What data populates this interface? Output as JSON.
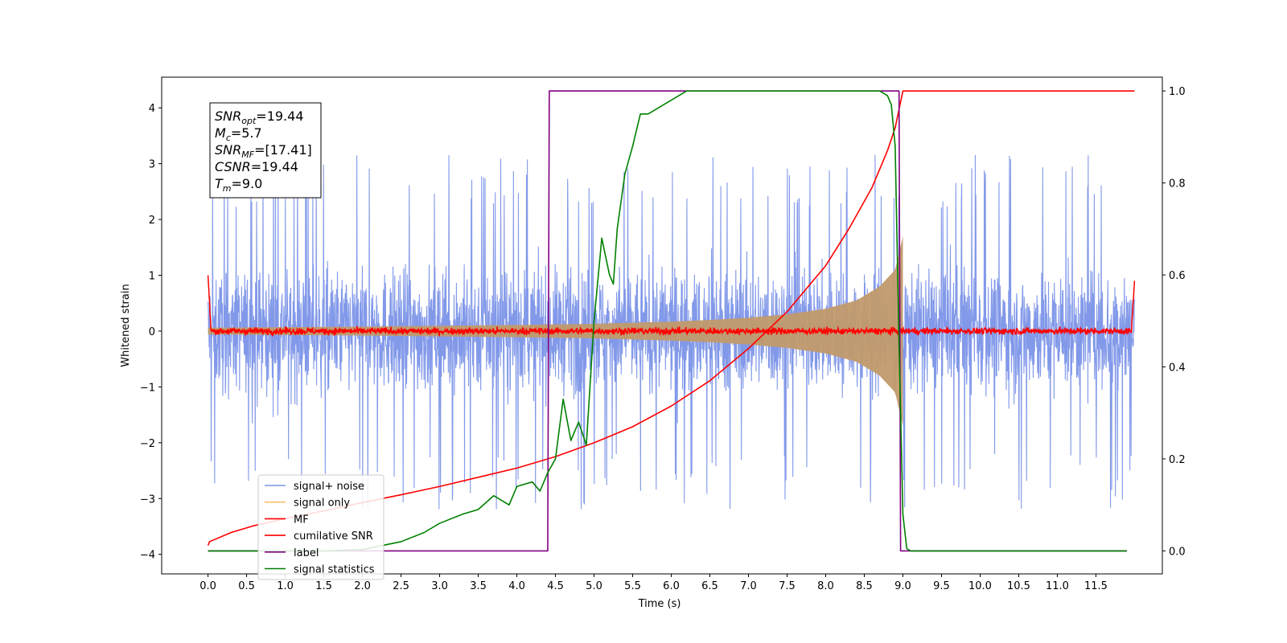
{
  "chart_data": {
    "type": "line",
    "title": "",
    "xlabel": "Time (s)",
    "ylabel": "Whitened strain",
    "y2label": "",
    "xlim": [
      -0.6,
      12.36
    ],
    "ylim": [
      -4.35,
      4.55
    ],
    "y2lim": [
      -0.05,
      1.03
    ],
    "x_ticks": [
      0.0,
      0.5,
      1.0,
      1.5,
      2.0,
      2.5,
      3.0,
      3.5,
      4.0,
      4.5,
      5.0,
      5.5,
      6.0,
      6.5,
      7.0,
      7.5,
      8.0,
      8.5,
      9.0,
      9.5,
      10.0,
      10.5,
      11.0,
      11.5
    ],
    "x_tick_labels": [
      "0.0",
      "0.5",
      "1.0",
      "1.5",
      "2.0",
      "2.5",
      "3.0",
      "3.5",
      "4.0",
      "4.5",
      "5.0",
      "5.5",
      "6.0",
      "6.5",
      "7.0",
      "7.5",
      "8.0",
      "8.5",
      "9.0",
      "9.5",
      "10.0",
      "10.5",
      "11.0",
      "11.5"
    ],
    "y_ticks": [
      -4,
      -3,
      -2,
      -1,
      0,
      1,
      2,
      3,
      4
    ],
    "y_tick_labels": [
      "−4",
      "−3",
      "−2",
      "−1",
      "0",
      "1",
      "2",
      "3",
      "4"
    ],
    "y2_ticks": [
      0.0,
      0.2,
      0.4,
      0.6,
      0.8,
      1.0
    ],
    "y2_tick_labels": [
      "0.0",
      "0.2",
      "0.4",
      "0.6",
      "0.8",
      "1.0"
    ],
    "legend_position": "lower-left",
    "legend": [
      {
        "label": "signal+ noise",
        "color": "#7b93e8"
      },
      {
        "label": "signal only",
        "color": "#f5c26b"
      },
      {
        "label": "MF",
        "color": "#ff0000"
      },
      {
        "label": "cumilative SNR",
        "color": "#ff0000"
      },
      {
        "label": "label",
        "color": "#800080"
      },
      {
        "label": "signal statistics",
        "color": "#008000"
      }
    ],
    "series": [
      {
        "name": "signal+ noise",
        "axis": "left",
        "color": "#7b93e8",
        "x_range": [
          0.0,
          12.0
        ],
        "amplitude_range": [
          -3.8,
          3.4
        ],
        "envelope_typical": [
          -2.5,
          2.5
        ]
      },
      {
        "name": "signal only",
        "axis": "left",
        "color": "#c19a6b",
        "x": [
          0.0,
          2.0,
          4.0,
          5.0,
          6.0,
          6.5,
          7.0,
          7.5,
          8.0,
          8.4,
          8.7,
          8.9,
          9.0,
          9.01
        ],
        "envelope": [
          0.06,
          0.08,
          0.11,
          0.13,
          0.17,
          0.2,
          0.24,
          0.3,
          0.4,
          0.55,
          0.8,
          1.1,
          1.7,
          0.0
        ]
      },
      {
        "name": "MF",
        "axis": "left",
        "color": "#ff0000",
        "x_range": [
          0.0,
          12.0
        ],
        "mean": 0.0,
        "noise_amp": 0.07,
        "edge_start": 1.0,
        "edge_end": 0.9
      },
      {
        "name": "cumilative SNR",
        "axis": "right",
        "color": "#ff0000",
        "x": [
          0.0,
          0.02,
          0.3,
          0.6,
          1.0,
          1.5,
          2.0,
          2.5,
          3.0,
          3.5,
          4.0,
          4.5,
          5.0,
          5.5,
          6.0,
          6.5,
          7.0,
          7.5,
          8.0,
          8.3,
          8.6,
          8.8,
          8.9,
          8.95,
          9.0,
          12.0
        ],
        "y": [
          0.012,
          0.02,
          0.04,
          0.055,
          0.07,
          0.087,
          0.105,
          0.122,
          0.14,
          0.16,
          0.18,
          0.205,
          0.235,
          0.27,
          0.315,
          0.37,
          0.44,
          0.52,
          0.62,
          0.7,
          0.79,
          0.87,
          0.92,
          0.96,
          1.0,
          1.0
        ]
      },
      {
        "name": "label",
        "axis": "right",
        "color": "#800080",
        "x": [
          0.0,
          4.4,
          4.42,
          8.95,
          8.97,
          11.9
        ],
        "y": [
          0.0,
          0.0,
          1.0,
          1.0,
          0.0,
          0.0
        ]
      },
      {
        "name": "signal statistics",
        "axis": "right",
        "color": "#008000",
        "x": [
          0.0,
          0.5,
          1.0,
          1.5,
          2.0,
          2.5,
          2.8,
          3.0,
          3.3,
          3.5,
          3.7,
          3.9,
          4.0,
          4.2,
          4.3,
          4.4,
          4.5,
          4.6,
          4.7,
          4.8,
          4.9,
          5.0,
          5.1,
          5.2,
          5.25,
          5.3,
          5.4,
          5.5,
          5.6,
          5.7,
          5.8,
          5.9,
          6.0,
          6.2,
          6.5,
          6.8,
          7.0,
          7.5,
          8.0,
          8.3,
          8.6,
          8.7,
          8.8,
          8.85,
          8.9,
          8.95,
          9.0,
          9.05,
          9.1,
          9.5,
          10.0,
          11.0,
          11.9
        ],
        "y": [
          0.0,
          0.0,
          0.0,
          0.0,
          0.003,
          0.02,
          0.04,
          0.06,
          0.08,
          0.09,
          0.12,
          0.1,
          0.14,
          0.15,
          0.13,
          0.17,
          0.2,
          0.33,
          0.24,
          0.28,
          0.23,
          0.5,
          0.68,
          0.6,
          0.58,
          0.7,
          0.82,
          0.88,
          0.95,
          0.95,
          0.96,
          0.97,
          0.98,
          1.0,
          1.0,
          1.0,
          1.0,
          1.0,
          1.0,
          1.0,
          1.0,
          1.0,
          0.99,
          0.97,
          0.88,
          0.45,
          0.08,
          0.005,
          0.0,
          0.0,
          0.0,
          0.0,
          0.0
        ]
      }
    ],
    "annotation": {
      "lines": [
        {
          "base": "SNR",
          "sub": "opt",
          "value": "=19.44"
        },
        {
          "base": "M",
          "sub": "c",
          "value": "=5.7"
        },
        {
          "base": "SNR",
          "sub": "MF",
          "value": "=[17.41]"
        },
        {
          "base": "CSNR",
          "sub": "",
          "value": "=19.44"
        },
        {
          "base": "T",
          "sub": "m",
          "value": "=9.0"
        }
      ]
    }
  }
}
